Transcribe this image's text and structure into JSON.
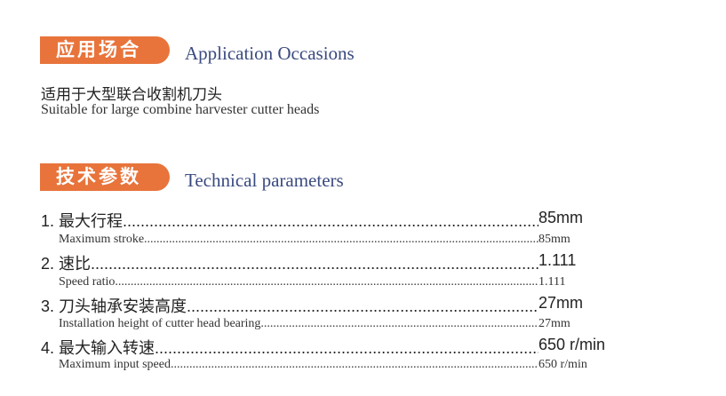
{
  "section1": {
    "badge": "应用场合",
    "title": "Application Occasions",
    "text_cn": "适用于大型联合收割机刀头",
    "text_en": "Suitable for large combine harvester cutter heads"
  },
  "section2": {
    "badge": "技术参数",
    "title": "Technical parameters",
    "params": [
      {
        "cn": "1. 最大行程",
        "cn_value": "85mm",
        "en": "Maximum stroke",
        "en_value": "85mm"
      },
      {
        "cn": "2. 速比",
        "cn_value": "1.111",
        "en": "Speed ratio",
        "en_value": "1.111"
      },
      {
        "cn": "3. 刀头轴承安装高度",
        "cn_value": " 27mm",
        "en": "Installation height of cutter head bearing",
        "en_value": "27mm"
      },
      {
        "cn": "4. 最大输入转速",
        "cn_value": "650 r/min",
        "en": "Maximum input speed",
        "en_value": "650 r/min"
      }
    ]
  },
  "colors": {
    "badge": "#e8743b",
    "title": "#3a4a80"
  }
}
